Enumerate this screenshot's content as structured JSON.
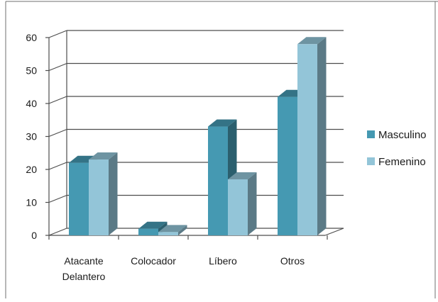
{
  "chart_data": {
    "type": "bar",
    "subtype": "3d-clustered-column",
    "categories": [
      "Atacante\nDelantero",
      "Colocador",
      "Líbero",
      "Otros"
    ],
    "series": [
      {
        "name": "Masculino",
        "values": [
          22,
          2,
          33,
          42
        ],
        "color": "#4599b2"
      },
      {
        "name": "Femenino",
        "values": [
          23,
          1,
          17,
          58
        ],
        "color": "#93c5d8"
      }
    ],
    "ylim": [
      0,
      60
    ],
    "yticks": [
      0,
      10,
      20,
      30,
      40,
      50,
      60
    ],
    "grid": true,
    "legend_position": "right",
    "title": "",
    "xlabel": "",
    "ylabel": ""
  }
}
